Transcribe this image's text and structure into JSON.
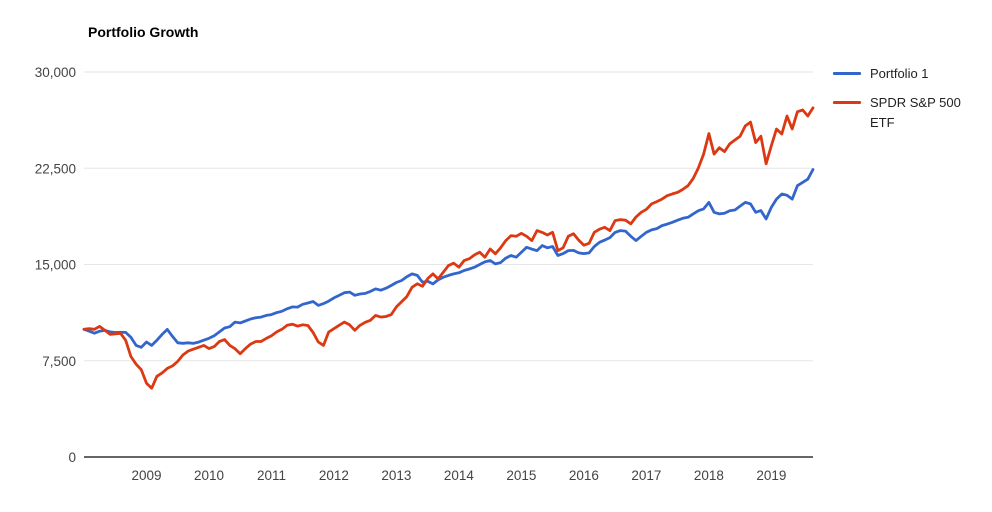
{
  "header": {
    "title": "Portfolio Growth"
  },
  "legend": {
    "items": [
      {
        "label": "Portfolio 1",
        "color": "#3366cc"
      },
      {
        "label": "SPDR S&P 500 ETF",
        "color": "#dc3912"
      }
    ]
  },
  "chart_data": {
    "type": "line",
    "title": "Portfolio Growth",
    "xlabel": "",
    "ylabel": "",
    "frequency": "monthly",
    "x_start": "2008-01",
    "x_end": "2019-09",
    "x_tick_years": [
      2009,
      2010,
      2011,
      2012,
      2013,
      2014,
      2015,
      2016,
      2017,
      2018,
      2019
    ],
    "ylim": [
      0,
      30000
    ],
    "y_ticks": [
      0,
      7500,
      15000,
      22500,
      30000
    ],
    "y_tick_labels": [
      "0",
      "7,500",
      "15,000",
      "22,500",
      "30,000"
    ],
    "grid": "horizontal",
    "legend_position": "right",
    "colors": {
      "grid": "#e6e6e6",
      "axis": "#333333",
      "tick_text": "#444444"
    },
    "series": [
      {
        "name": "Portfolio 1",
        "color": "#3366cc",
        "values": [
          9950,
          9800,
          9650,
          9800,
          9870,
          9750,
          9700,
          9720,
          9710,
          9330,
          8700,
          8550,
          8960,
          8700,
          9100,
          9550,
          9940,
          9400,
          8900,
          8860,
          8900,
          8850,
          8950,
          9100,
          9250,
          9450,
          9750,
          10050,
          10150,
          10510,
          10450,
          10600,
          10750,
          10850,
          10900,
          11030,
          11100,
          11250,
          11350,
          11550,
          11700,
          11680,
          11900,
          12000,
          12120,
          11810,
          11950,
          12150,
          12400,
          12590,
          12800,
          12850,
          12600,
          12700,
          12750,
          12900,
          13100,
          13000,
          13150,
          13360,
          13600,
          13750,
          14050,
          14270,
          14150,
          13620,
          13700,
          13490,
          13800,
          14010,
          14150,
          14270,
          14350,
          14530,
          14650,
          14790,
          15000,
          15200,
          15310,
          15050,
          15150,
          15500,
          15700,
          15570,
          15960,
          16340,
          16200,
          16080,
          16470,
          16300,
          16400,
          15700,
          15850,
          16080,
          16100,
          15900,
          15850,
          15900,
          16400,
          16730,
          16900,
          17100,
          17500,
          17640,
          17600,
          17200,
          16860,
          17200,
          17510,
          17700,
          17800,
          18030,
          18150,
          18290,
          18450,
          18600,
          18680,
          18940,
          19190,
          19330,
          19840,
          19070,
          18940,
          19000,
          19190,
          19250,
          19550,
          19840,
          19720,
          19070,
          19200,
          18550,
          19450,
          20100,
          20490,
          20400,
          20100,
          21140,
          21400,
          21650,
          22400
        ]
      },
      {
        "name": "SPDR S&P 500 ETF",
        "color": "#dc3912",
        "values": [
          9950,
          10000,
          9950,
          10180,
          9870,
          9560,
          9600,
          9640,
          9090,
          7830,
          7230,
          6800,
          5750,
          5360,
          6290,
          6550,
          6900,
          7100,
          7450,
          7950,
          8250,
          8400,
          8550,
          8700,
          8450,
          8600,
          9000,
          9150,
          8700,
          8440,
          8050,
          8450,
          8800,
          9000,
          9000,
          9240,
          9450,
          9750,
          9950,
          10260,
          10350,
          10200,
          10300,
          10250,
          9700,
          8960,
          8700,
          9740,
          10000,
          10260,
          10510,
          10300,
          9870,
          10260,
          10500,
          10650,
          11030,
          10900,
          10950,
          11100,
          11700,
          12100,
          12500,
          13230,
          13500,
          13300,
          13900,
          14270,
          13880,
          14400,
          14920,
          15100,
          14790,
          15300,
          15450,
          15750,
          15960,
          15570,
          16210,
          15830,
          16300,
          16860,
          17250,
          17200,
          17430,
          17200,
          16860,
          17640,
          17500,
          17300,
          17510,
          16080,
          16300,
          17200,
          17400,
          16900,
          16500,
          16650,
          17510,
          17750,
          17900,
          17640,
          18420,
          18500,
          18450,
          18160,
          18700,
          19070,
          19300,
          19720,
          19900,
          20100,
          20360,
          20500,
          20620,
          20850,
          21140,
          21700,
          22530,
          23600,
          25200,
          23600,
          24100,
          23800,
          24400,
          24700,
          25000,
          25800,
          26100,
          24500,
          25000,
          22850,
          24240,
          25560,
          25170,
          26570,
          25560,
          26900,
          27050,
          26570,
          27200
        ]
      }
    ]
  }
}
